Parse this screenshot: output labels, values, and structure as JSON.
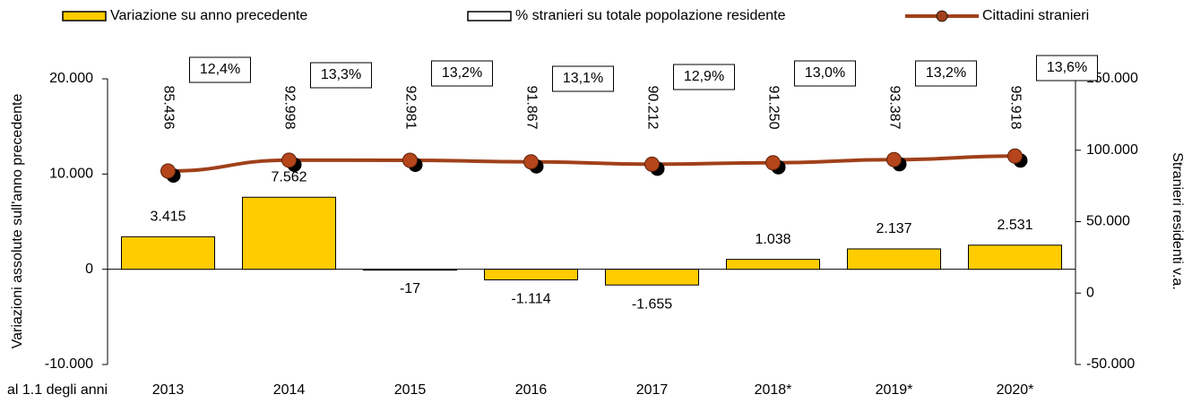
{
  "chart_data": {
    "type": "bar",
    "categories": [
      "2013",
      "2014",
      "2015",
      "2016",
      "2017",
      "2018*",
      "2019*",
      "2020*"
    ],
    "x_label": "al 1.1 degli anni",
    "y_label": "Variazioni assolute sull'anno precedente",
    "y2_label": "Stranieri residenti v.a.",
    "ylim": [
      -10000,
      20000
    ],
    "yticks": [
      {
        "value": -10000,
        "label": "-10.000"
      },
      0,
      {
        "value": 10000,
        "label": "10.000"
      },
      {
        "value": 20000,
        "label": "20.000"
      }
    ],
    "y2lim": [
      -50000,
      150000
    ],
    "y2ticks": [
      {
        "value": -50000,
        "label": "-50.000"
      },
      0,
      {
        "value": 50000,
        "label": "50.000"
      },
      {
        "value": 100000,
        "label": "100.000"
      },
      {
        "value": 150000,
        "label": "150.000"
      }
    ],
    "series": [
      {
        "name": "Variazione su anno precedente",
        "type": "bar",
        "color": "#ffcc00",
        "values": [
          3415,
          7562,
          -17,
          -1114,
          -1655,
          1038,
          2137,
          2531
        ],
        "value_labels": [
          "3.415",
          "7.562",
          "-17",
          "-1.114",
          "-1.655",
          "1.038",
          "2.137",
          "2.531"
        ]
      },
      {
        "name": "% stranieri su totale popolazione residente",
        "type": "label",
        "color": "#ffffff",
        "values": [
          12.4,
          13.3,
          13.2,
          13.1,
          12.9,
          13.0,
          13.2,
          13.6
        ],
        "value_labels": [
          "12,4%",
          "13,3%",
          "13,2%",
          "13,1%",
          "12,9%",
          "13,0%",
          "13,2%",
          "13,6%"
        ]
      },
      {
        "name": "Cittadini stranieri",
        "type": "line",
        "axis": "y2",
        "color": "#a0401a",
        "values": [
          85436,
          92998,
          92981,
          91867,
          90212,
          91250,
          93387,
          95918
        ],
        "value_labels": [
          "85.436",
          "92.998",
          "92.981",
          "91.867",
          "90.212",
          "91.250",
          "93.387",
          "95.918"
        ]
      }
    ]
  }
}
